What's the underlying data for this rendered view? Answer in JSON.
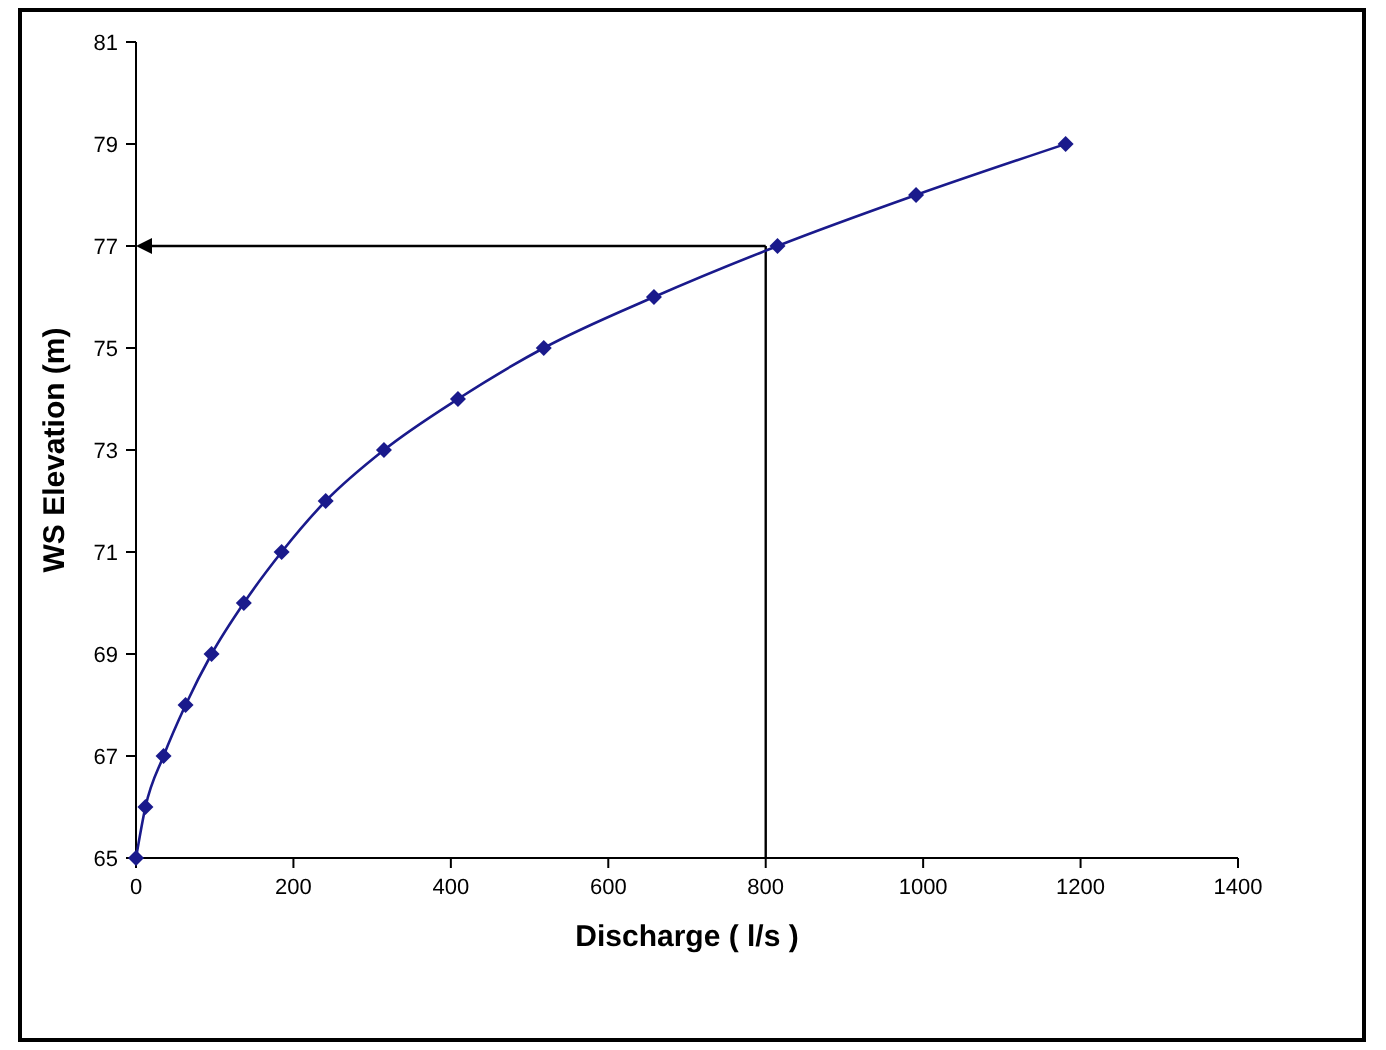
{
  "chart_data": {
    "type": "line",
    "xlabel": "Discharge ( l/s )",
    "ylabel": "WS Elevation (m)",
    "x": [
      0,
      12,
      35,
      63,
      96,
      137,
      185,
      241,
      315,
      409,
      518,
      658,
      815,
      991,
      1181
    ],
    "series": [
      {
        "color": "#1a1a8c",
        "values": [
          65,
          66,
          67,
          68,
          69,
          70,
          71,
          72,
          73,
          74,
          75,
          76,
          77,
          78,
          79
        ]
      }
    ],
    "xlim": [
      0,
      1400
    ],
    "xticks": [
      0,
      200,
      400,
      600,
      800,
      1000,
      1200,
      1400
    ],
    "ylim": [
      65,
      81
    ],
    "yticks": [
      65,
      67,
      69,
      71,
      73,
      75,
      77,
      79,
      81
    ],
    "marker": "diamond",
    "line_style": "solid",
    "ref_lines": [
      {
        "axis": "y",
        "value": 77,
        "color": "#000000"
      },
      {
        "axis": "x",
        "value": 800,
        "color": "#000000"
      }
    ]
  }
}
